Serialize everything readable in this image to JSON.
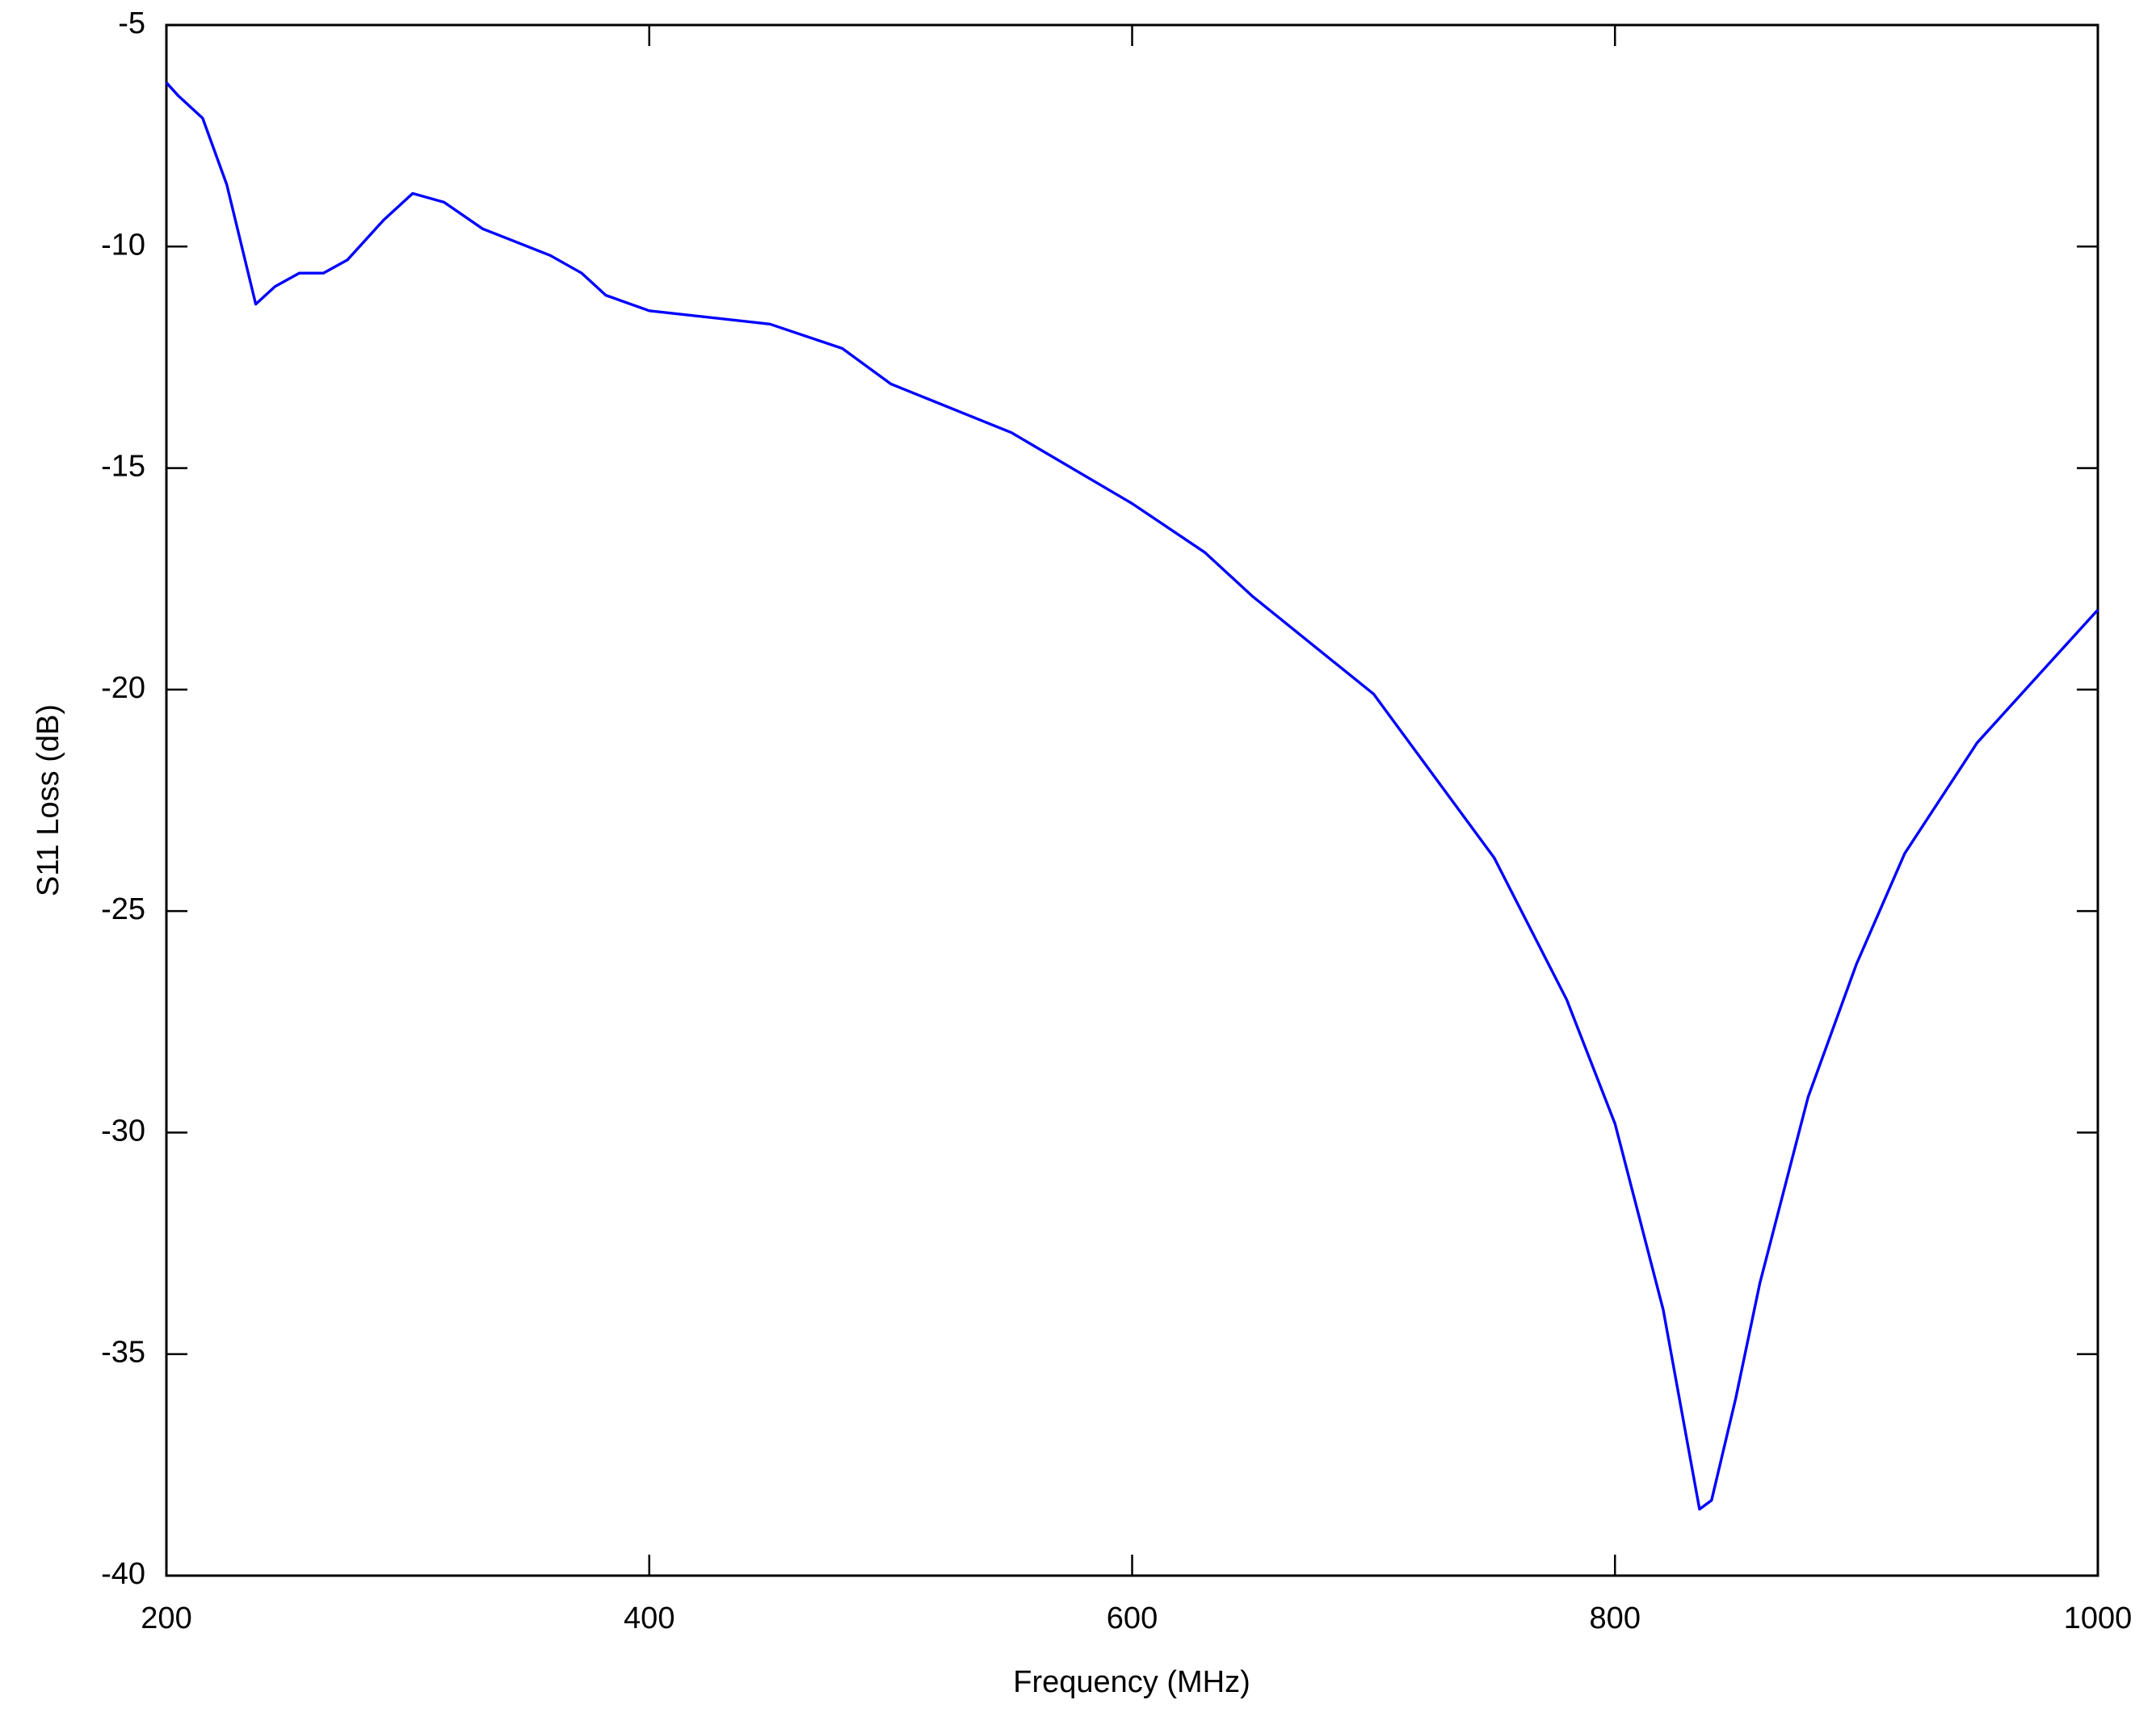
{
  "chart_data": {
    "type": "line",
    "x_label": "Frequency (MHz)",
    "y_label": "S11 Loss (dB)",
    "x": [
      200,
      205,
      215,
      225,
      237,
      245,
      255,
      265,
      275,
      290,
      302,
      315,
      331,
      345,
      359,
      372,
      382,
      400,
      450,
      480,
      500,
      550,
      600,
      630,
      650,
      700,
      750,
      780,
      800,
      820,
      830,
      835,
      840,
      850,
      860,
      880,
      900,
      920,
      950,
      980,
      1000
    ],
    "series": [
      {
        "name": "S11",
        "color": "#0000ff",
        "values": [
          -6.3,
          -6.6,
          -7.1,
          -8.6,
          -11.3,
          -10.9,
          -10.6,
          -10.6,
          -10.3,
          -9.4,
          -8.8,
          -9.0,
          -9.6,
          -9.9,
          -10.2,
          -10.6,
          -11.1,
          -11.45,
          -11.75,
          -12.3,
          -13.1,
          -14.2,
          -15.8,
          -16.9,
          -17.9,
          -20.1,
          -23.8,
          -27.0,
          -29.8,
          -34.0,
          -37.0,
          -38.5,
          -38.3,
          -36.0,
          -33.4,
          -29.2,
          -26.2,
          -23.7,
          -21.2,
          -19.4,
          -18.2
        ]
      }
    ],
    "xlim": [
      200,
      1000
    ],
    "xticks": [
      200,
      400,
      600,
      800,
      1000
    ],
    "ylim": [
      -40,
      -5
    ],
    "yticks": [
      -40,
      -35,
      -30,
      -25,
      -20,
      -15,
      -10,
      -5
    ],
    "grid": false
  }
}
